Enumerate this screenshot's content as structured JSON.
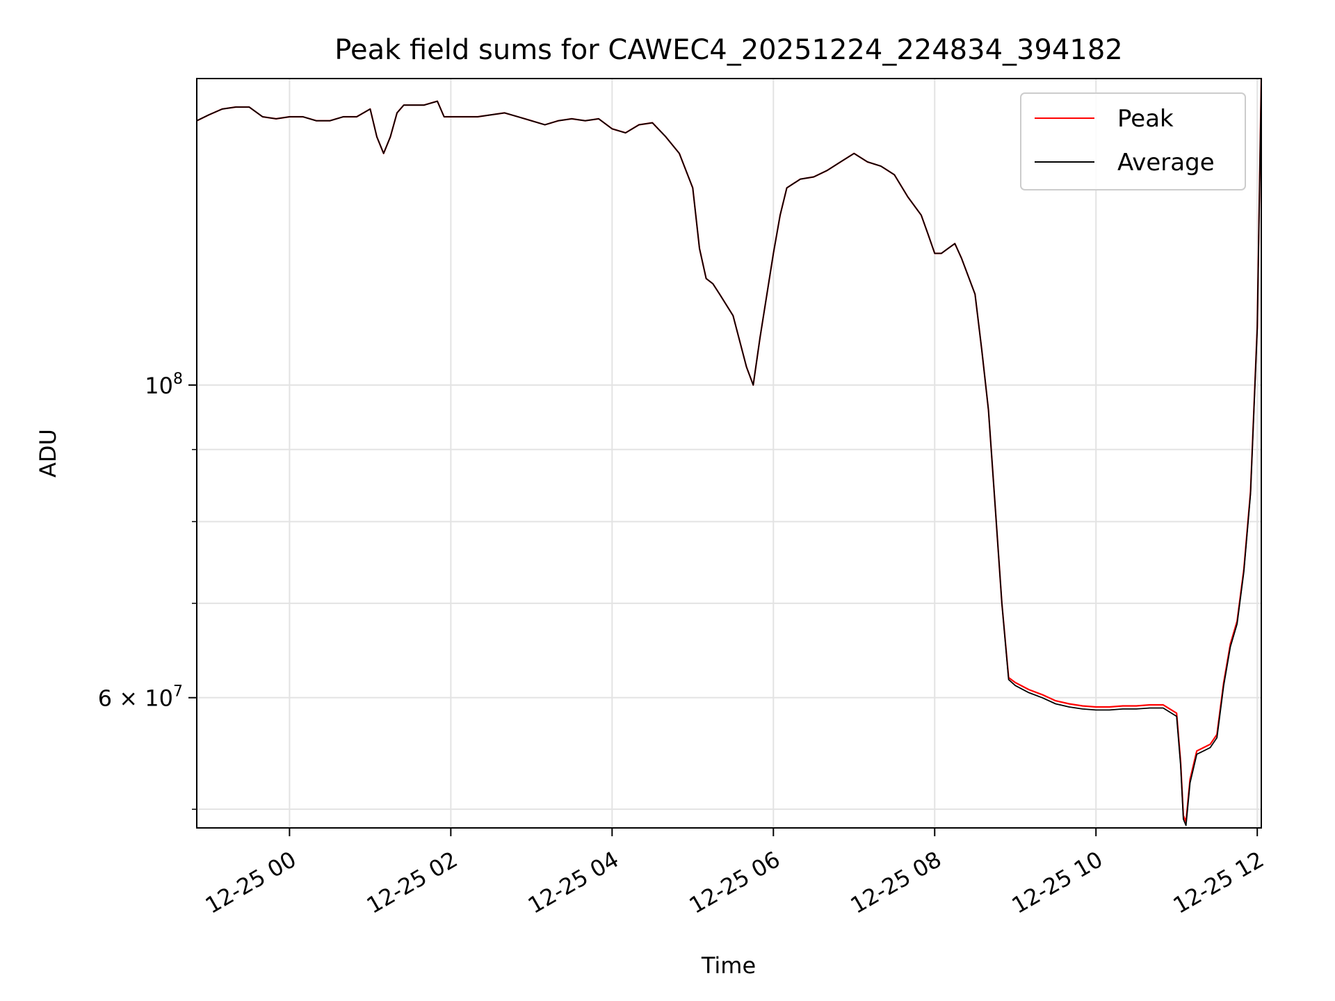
{
  "chart_data": {
    "type": "line",
    "title": "Peak field sums for CAWEC4_20251224_224834_394182",
    "xlabel": "Time",
    "ylabel": "ADU",
    "yscale": "log",
    "grid": true,
    "legend_position": "top-right",
    "xlim": [
      "12-24 22:51",
      "12-25 12:03"
    ],
    "ylim": [
      48500000,
      165000000
    ],
    "x_ticks": [
      "12-25 00",
      "12-25 02",
      "12-25 04",
      "12-25 06",
      "12-25 08",
      "12-25 10",
      "12-25 12"
    ],
    "y_ticks": [
      {
        "value": 100000000,
        "base": "10",
        "exp": "8",
        "prefix": ""
      },
      {
        "value": 60000000,
        "base": "10",
        "exp": "7",
        "prefix": "6 × "
      }
    ],
    "y_minor_ticks": [
      50000000,
      70000000,
      80000000,
      90000000
    ],
    "x": [
      "12-24 22:51",
      "12-24 23:00",
      "12-24 23:10",
      "12-24 23:20",
      "12-24 23:30",
      "12-24 23:40",
      "12-24 23:50",
      "12-25 00:00",
      "12-25 00:10",
      "12-25 00:20",
      "12-25 00:30",
      "12-25 00:40",
      "12-25 00:50",
      "12-25 01:00",
      "12-25 01:05",
      "12-25 01:10",
      "12-25 01:15",
      "12-25 01:20",
      "12-25 01:25",
      "12-25 01:30",
      "12-25 01:40",
      "12-25 01:50",
      "12-25 01:55",
      "12-25 02:00",
      "12-25 02:10",
      "12-25 02:20",
      "12-25 02:30",
      "12-25 02:40",
      "12-25 02:50",
      "12-25 03:00",
      "12-25 03:10",
      "12-25 03:20",
      "12-25 03:30",
      "12-25 03:40",
      "12-25 03:50",
      "12-25 04:00",
      "12-25 04:10",
      "12-25 04:20",
      "12-25 04:30",
      "12-25 04:40",
      "12-25 04:50",
      "12-25 05:00",
      "12-25 05:05",
      "12-25 05:10",
      "12-25 05:15",
      "12-25 05:20",
      "12-25 05:30",
      "12-25 05:40",
      "12-25 05:45",
      "12-25 05:50",
      "12-25 06:00",
      "12-25 06:05",
      "12-25 06:10",
      "12-25 06:20",
      "12-25 06:30",
      "12-25 06:40",
      "12-25 06:50",
      "12-25 07:00",
      "12-25 07:10",
      "12-25 07:20",
      "12-25 07:30",
      "12-25 07:40",
      "12-25 07:50",
      "12-25 07:55",
      "12-25 08:00",
      "12-25 08:05",
      "12-25 08:10",
      "12-25 08:15",
      "12-25 08:20",
      "12-25 08:30",
      "12-25 08:35",
      "12-25 08:40",
      "12-25 08:45",
      "12-25 08:50",
      "12-25 08:55",
      "12-25 09:00",
      "12-25 09:10",
      "12-25 09:20",
      "12-25 09:30",
      "12-25 09:40",
      "12-25 09:50",
      "12-25 10:00",
      "12-25 10:10",
      "12-25 10:20",
      "12-25 10:30",
      "12-25 10:40",
      "12-25 10:50",
      "12-25 11:00",
      "12-25 11:03",
      "12-25 11:05",
      "12-25 11:07",
      "12-25 11:10",
      "12-25 11:15",
      "12-25 11:20",
      "12-25 11:25",
      "12-25 11:30",
      "12-25 11:35",
      "12-25 11:40",
      "12-25 11:45",
      "12-25 11:50",
      "12-25 11:55",
      "12-25 12:00",
      "12-25 12:03"
    ],
    "series": [
      {
        "name": "Peak",
        "color": "#ff0000",
        "values": [
          154000000,
          155500000,
          157000000,
          157500000,
          157500000,
          155000000,
          154500000,
          155000000,
          155000000,
          154000000,
          154000000,
          155000000,
          155000000,
          157000000,
          150000000,
          146000000,
          150000000,
          156000000,
          158000000,
          158000000,
          158000000,
          159000000,
          155000000,
          155000000,
          155000000,
          155000000,
          155500000,
          156000000,
          155000000,
          154000000,
          153000000,
          154000000,
          154500000,
          154000000,
          154500000,
          152000000,
          151000000,
          153000000,
          153500000,
          150000000,
          146000000,
          138000000,
          125000000,
          119000000,
          118000000,
          116000000,
          112000000,
          103000000,
          100000000,
          108000000,
          124000000,
          132000000,
          138000000,
          140000000,
          140500000,
          142000000,
          144000000,
          146000000,
          144000000,
          143000000,
          141000000,
          136000000,
          132000000,
          128000000,
          124000000,
          124000000,
          125000000,
          126000000,
          123000000,
          116000000,
          106000000,
          96000000,
          82000000,
          70000000,
          62000000,
          61500000,
          60800000,
          60300000,
          59700000,
          59400000,
          59200000,
          59100000,
          59100000,
          59200000,
          59200000,
          59300000,
          59300000,
          58500000,
          54000000,
          49500000,
          49000000,
          52500000,
          55000000,
          55300000,
          55600000,
          56500000,
          61500000,
          65500000,
          68000000,
          74000000,
          84000000,
          110000000,
          165000000
        ]
      },
      {
        "name": "Average",
        "color": "#000000",
        "values": [
          154000000,
          155500000,
          157000000,
          157500000,
          157500000,
          155000000,
          154500000,
          155000000,
          155000000,
          154000000,
          154000000,
          155000000,
          155000000,
          157000000,
          150000000,
          146000000,
          150000000,
          156000000,
          158000000,
          158000000,
          158000000,
          159000000,
          155000000,
          155000000,
          155000000,
          155000000,
          155500000,
          156000000,
          155000000,
          154000000,
          153000000,
          154000000,
          154500000,
          154000000,
          154500000,
          152000000,
          151000000,
          153000000,
          153500000,
          150000000,
          146000000,
          138000000,
          125000000,
          119000000,
          118000000,
          116000000,
          112000000,
          103000000,
          100000000,
          108000000,
          124000000,
          132000000,
          138000000,
          140000000,
          140500000,
          142000000,
          144000000,
          146000000,
          144000000,
          143000000,
          141000000,
          136000000,
          132000000,
          128000000,
          124000000,
          124000000,
          125000000,
          126000000,
          123000000,
          116000000,
          106000000,
          96000000,
          82000000,
          70000000,
          61800000,
          61200000,
          60500000,
          60000000,
          59400000,
          59100000,
          58900000,
          58800000,
          58800000,
          58900000,
          58900000,
          59000000,
          59000000,
          58200000,
          53700000,
          49200000,
          48700000,
          52200000,
          54700000,
          55000000,
          55300000,
          56200000,
          61200000,
          65200000,
          67700000,
          73700000,
          83700000,
          109700000,
          164500000
        ]
      }
    ]
  }
}
